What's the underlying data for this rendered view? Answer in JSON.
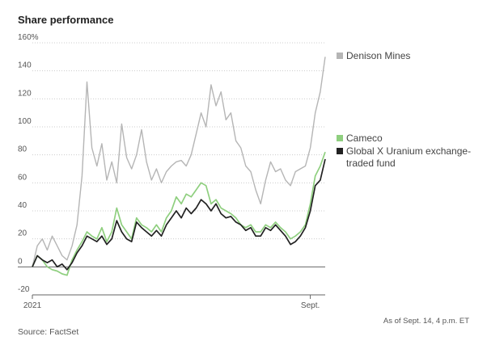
{
  "chart_data": {
    "type": "line",
    "title": "Share performance",
    "source": "Source: FactSet",
    "note": "As of Sept. 14, 4 p.m. ET",
    "categories": [
      "2021",
      null,
      null,
      null,
      null,
      null,
      null,
      null,
      null,
      null,
      null,
      null,
      null,
      null,
      null,
      null,
      null,
      null,
      null,
      null,
      null,
      null,
      null,
      null,
      null,
      null,
      null,
      null,
      null,
      null,
      null,
      null,
      null,
      null,
      null,
      null,
      null,
      null,
      null,
      null,
      null,
      null,
      null,
      null,
      null,
      null,
      null,
      null,
      null,
      null,
      null,
      null,
      null,
      null,
      null,
      null,
      "Sept.",
      null,
      null,
      null
    ],
    "series": [
      {
        "name": "Denison Mines",
        "color": "#b5b5b5",
        "values": [
          0,
          15,
          20,
          12,
          22,
          15,
          8,
          5,
          15,
          30,
          65,
          132,
          85,
          72,
          88,
          62,
          75,
          60,
          102,
          78,
          70,
          80,
          98,
          75,
          62,
          70,
          60,
          68,
          72,
          75,
          76,
          72,
          80,
          95,
          110,
          100,
          130,
          115,
          125,
          105,
          110,
          90,
          85,
          72,
          68,
          55,
          45,
          62,
          75,
          68,
          70,
          62,
          58,
          68,
          70,
          72,
          85,
          110,
          125,
          150
        ]
      },
      {
        "name": "Cameco",
        "color": "#8fcf7f",
        "values": [
          0,
          8,
          5,
          0,
          -2,
          -3,
          -5,
          -6,
          5,
          12,
          18,
          25,
          22,
          20,
          28,
          18,
          25,
          42,
          30,
          25,
          20,
          35,
          30,
          28,
          25,
          30,
          25,
          35,
          40,
          50,
          45,
          52,
          50,
          55,
          60,
          58,
          45,
          48,
          42,
          40,
          38,
          35,
          30,
          28,
          30,
          25,
          25,
          30,
          28,
          32,
          28,
          25,
          20,
          22,
          25,
          30,
          45,
          65,
          72,
          82
        ]
      },
      {
        "name": "Global X Uranium exchange-traded fund",
        "color": "#222222",
        "values": [
          0,
          8,
          5,
          3,
          5,
          0,
          2,
          -2,
          3,
          10,
          15,
          22,
          20,
          18,
          22,
          16,
          20,
          33,
          25,
          20,
          18,
          32,
          28,
          25,
          22,
          26,
          22,
          30,
          35,
          40,
          35,
          42,
          38,
          42,
          48,
          45,
          40,
          45,
          38,
          35,
          36,
          32,
          30,
          26,
          28,
          22,
          22,
          28,
          26,
          30,
          26,
          22,
          16,
          18,
          22,
          28,
          40,
          58,
          62,
          77
        ]
      }
    ],
    "ylim": [
      -20,
      160
    ],
    "yticks": [
      -20,
      0,
      20,
      40,
      60,
      80,
      100,
      120,
      140,
      {
        "value": 160,
        "label": "160%"
      }
    ],
    "grid": true
  }
}
